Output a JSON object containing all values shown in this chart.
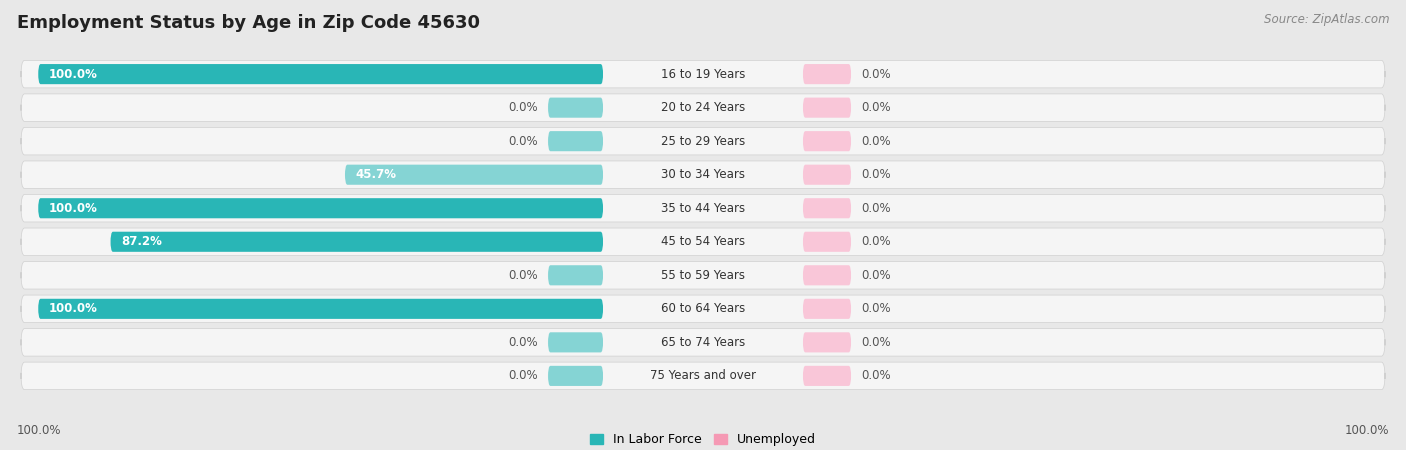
{
  "title": "Employment Status by Age in Zip Code 45630",
  "source": "Source: ZipAtlas.com",
  "age_groups": [
    "16 to 19 Years",
    "20 to 24 Years",
    "25 to 29 Years",
    "30 to 34 Years",
    "35 to 44 Years",
    "45 to 54 Years",
    "55 to 59 Years",
    "60 to 64 Years",
    "65 to 74 Years",
    "75 Years and over"
  ],
  "labor_force": [
    100.0,
    0.0,
    0.0,
    45.7,
    100.0,
    87.2,
    0.0,
    100.0,
    0.0,
    0.0
  ],
  "unemployed": [
    0.0,
    0.0,
    0.0,
    0.0,
    0.0,
    0.0,
    0.0,
    0.0,
    0.0,
    0.0
  ],
  "labor_color": "#29b6b6",
  "labor_color_light": "#85d4d4",
  "unemployed_color": "#f599b4",
  "unemployed_color_light": "#f9c6d8",
  "fig_bg": "#e8e8e8",
  "row_bg": "#f5f5f5",
  "title_fontsize": 13,
  "source_fontsize": 8.5,
  "label_fontsize": 8.5,
  "cat_fontsize": 8.5,
  "legend_fontsize": 9,
  "bottom_left_label": "100.0%",
  "bottom_right_label": "100.0%"
}
